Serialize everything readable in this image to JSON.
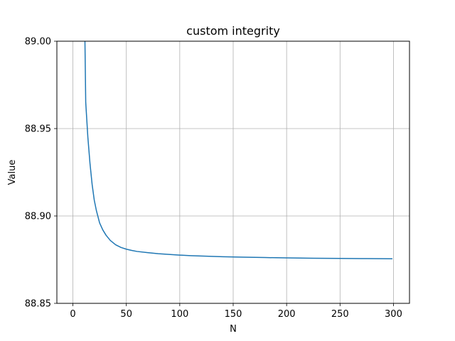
{
  "chart_data": {
    "type": "line",
    "title": "custom integrity",
    "xlabel": "N",
    "ylabel": "Value",
    "xlim": [
      -15,
      315
    ],
    "ylim": [
      88.85,
      89.0
    ],
    "x_ticks": [
      0,
      50,
      100,
      150,
      200,
      250,
      300
    ],
    "x_tick_labels": [
      "0",
      "50",
      "100",
      "150",
      "200",
      "250",
      "300"
    ],
    "y_ticks": [
      88.85,
      88.9,
      88.95,
      89.0
    ],
    "y_tick_labels": [
      "88.85",
      "88.90",
      "88.95",
      "89.00"
    ],
    "grid": true,
    "series": [
      {
        "color": "#1f77b4",
        "x": [
          10,
          12,
          14,
          16,
          18,
          20,
          22,
          25,
          28,
          31,
          35,
          40,
          45,
          50,
          55,
          60,
          70,
          80,
          90,
          100,
          110,
          125,
          140,
          160,
          180,
          200,
          225,
          250,
          275,
          299
        ],
        "y": [
          89.06,
          88.965,
          88.945,
          88.93,
          88.918,
          88.909,
          88.903,
          88.896,
          88.892,
          88.889,
          88.886,
          88.8835,
          88.882,
          88.881,
          88.8803,
          88.8797,
          88.879,
          88.8784,
          88.878,
          88.8776,
          88.8773,
          88.877,
          88.8767,
          88.8764,
          88.8762,
          88.876,
          88.8758,
          88.8757,
          88.8756,
          88.8755
        ]
      }
    ]
  }
}
